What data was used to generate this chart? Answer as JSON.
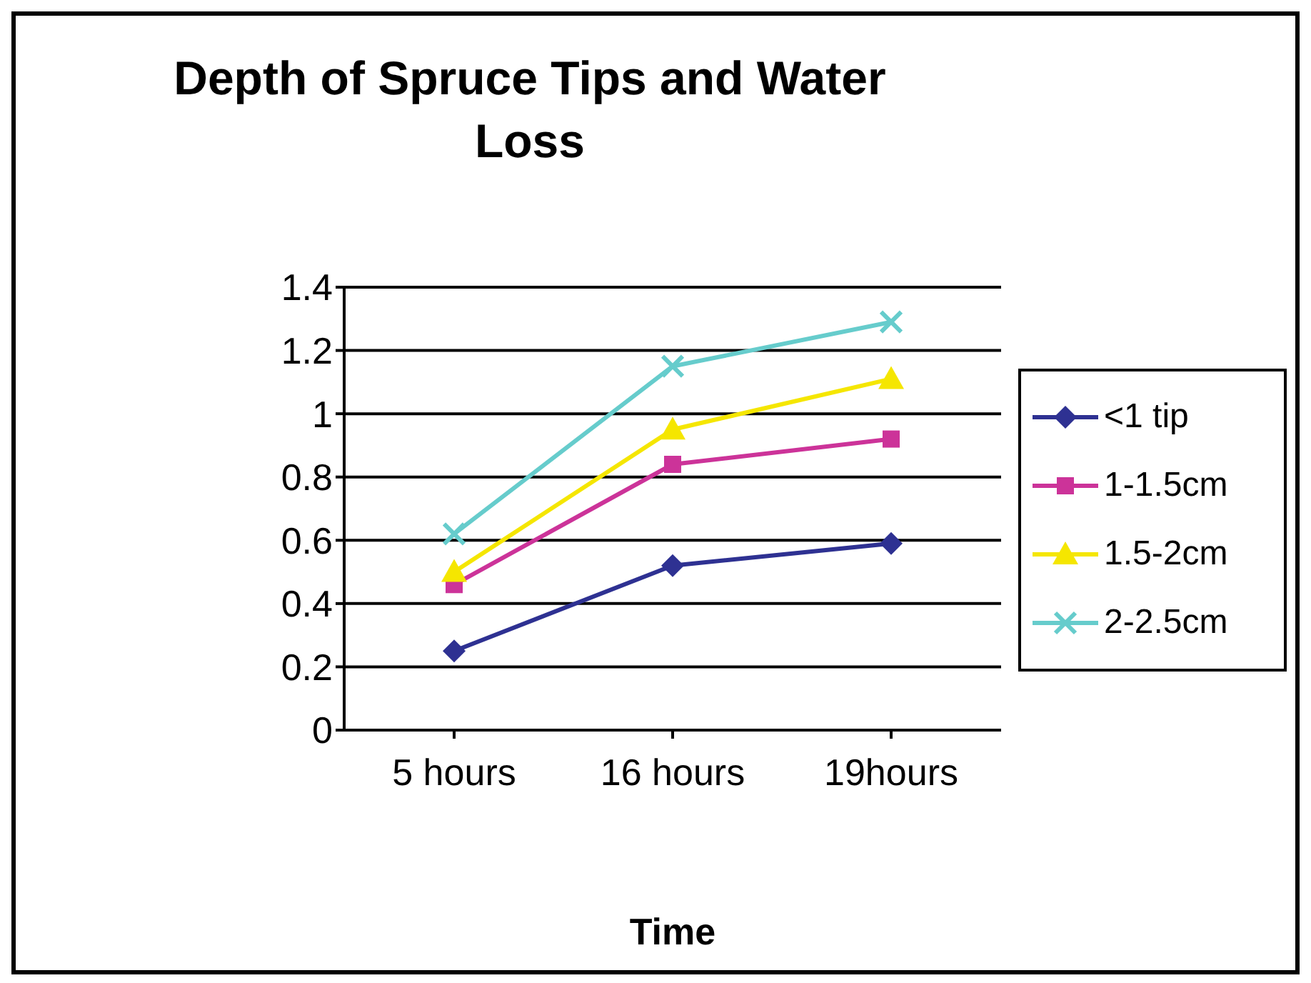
{
  "chart_data": {
    "type": "line",
    "title": "Depth of Spruce Tips and Water Loss",
    "xlabel": "Time",
    "categories": [
      "5 hours",
      "16 hours",
      "19hours"
    ],
    "series": [
      {
        "name": "<1 tip",
        "color": "#2e3192",
        "marker": "diamond",
        "values": [
          0.25,
          0.52,
          0.59
        ]
      },
      {
        "name": "1-1.5cm",
        "color": "#cc3399",
        "marker": "square",
        "values": [
          0.46,
          0.84,
          0.92
        ]
      },
      {
        "name": "1.5-2cm",
        "color": "#f5e600",
        "marker": "triangle",
        "values": [
          0.5,
          0.95,
          1.11
        ]
      },
      {
        "name": "2-2.5cm",
        "color": "#66cccc",
        "marker": "cross",
        "values": [
          0.62,
          1.15,
          1.29
        ]
      }
    ],
    "ylim": [
      0,
      1.4
    ],
    "yticks": [
      0,
      0.2,
      0.4,
      0.6,
      0.8,
      1,
      1.2,
      1.4
    ],
    "grid": "y",
    "legend": "right"
  }
}
